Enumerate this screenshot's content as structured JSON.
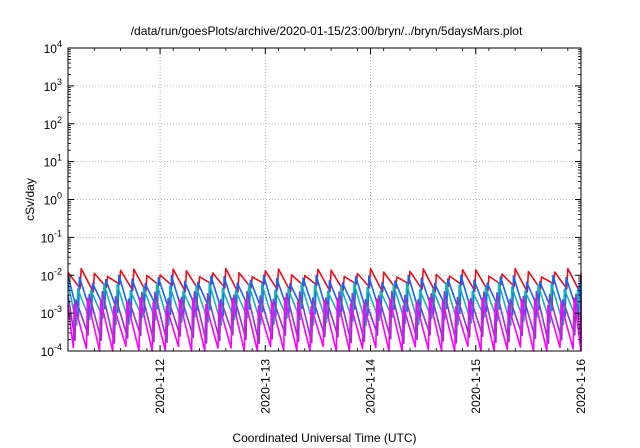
{
  "chart_data": {
    "type": "line",
    "title": "/data/run/goesPlots/archive/2020-01-15/23:00/bryn/../bryn/5daysMars.plot",
    "xlabel": "Coordinated Universal Time (UTC)",
    "ylabel": "cSv/day",
    "y_scale": "log",
    "ylim_exponents": [
      -4,
      4
    ],
    "y_ticks": [
      {
        "base": "10",
        "exp": "4"
      },
      {
        "base": "10",
        "exp": "3"
      },
      {
        "base": "10",
        "exp": "2"
      },
      {
        "base": "10",
        "exp": "1"
      },
      {
        "base": "10",
        "exp": "0"
      },
      {
        "base": "10",
        "exp": "-1"
      },
      {
        "base": "10",
        "exp": "-2"
      },
      {
        "base": "10",
        "exp": "-3"
      },
      {
        "base": "10",
        "exp": "-4"
      }
    ],
    "xlim": [
      "2020-01-11 03:00",
      "2020-01-16 00:00"
    ],
    "x_ticks": [
      "2020-1-12",
      "2020-1-13",
      "2020-1-14",
      "2020-1-15",
      "2020-1-16"
    ],
    "grid": true,
    "series": [
      {
        "color": "#e8101a",
        "values": [
          0.012,
          0.0045
        ]
      },
      {
        "color": "#1464ff",
        "values": [
          0.008,
          0.001
        ]
      },
      {
        "color": "#18b4b4",
        "values": [
          0.005,
          0.0006
        ]
      },
      {
        "color": "#8040c0",
        "values": [
          0.003,
          0.0002
        ]
      },
      {
        "color": "#ff00ff",
        "values": [
          0.002,
          0.0001
        ]
      }
    ],
    "sawtooth_period_hours": 3
  }
}
